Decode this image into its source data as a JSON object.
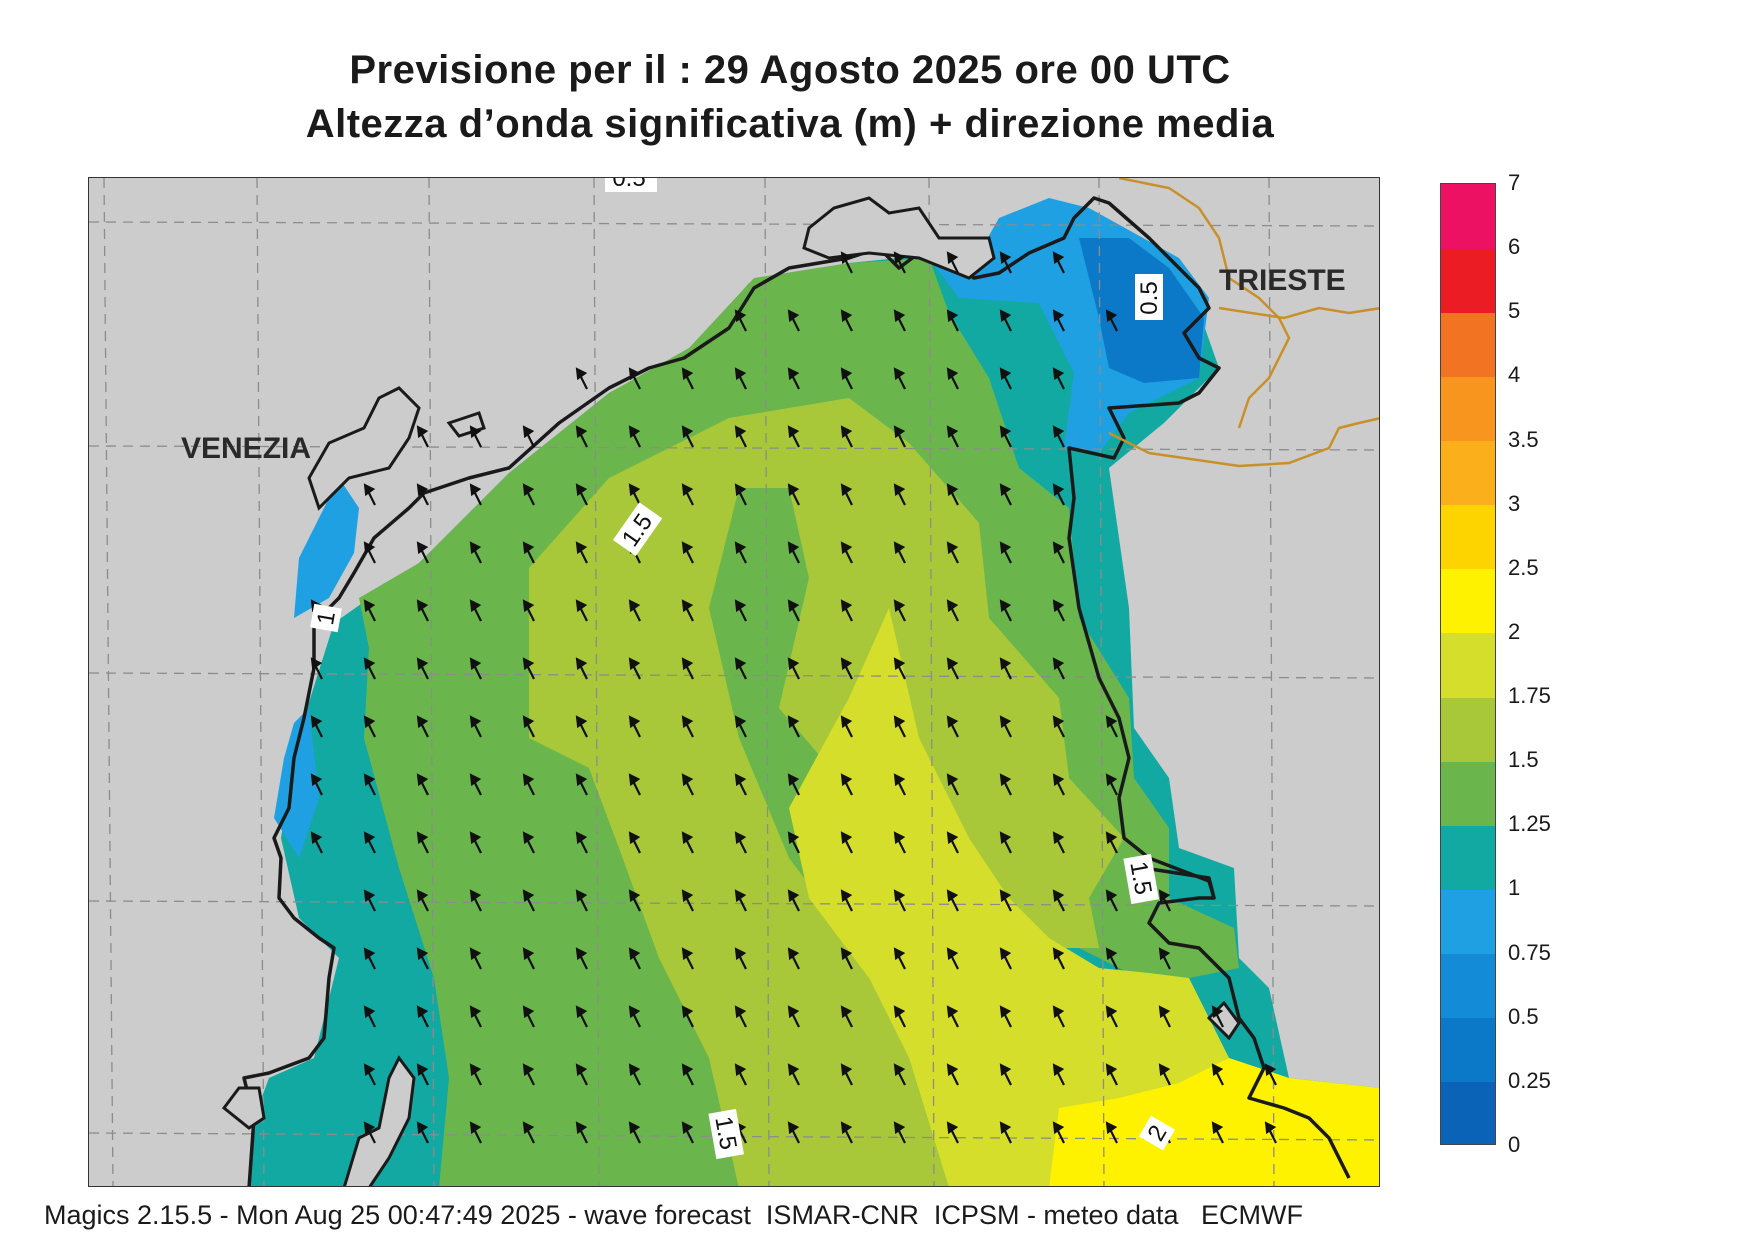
{
  "title": {
    "line1": "Previsione per il  :  29   Agosto  2025   ore 00 UTC",
    "line2": "Altezza d’onda significativa (m) + direzione media"
  },
  "map": {
    "cities": [
      {
        "name": "VENEZIA"
      },
      {
        "name": "TRIESTE"
      }
    ],
    "contour_labels": [
      "0.5",
      "1.5",
      "1",
      "1.5",
      "1.5",
      "2",
      "0.5"
    ],
    "wave_direction": "north-northwest",
    "colors": {
      "land": "#cccccd",
      "coast_line": "#1a1a1a",
      "border_line": "#c8902a",
      "grid_line": "#8c8c8c"
    }
  },
  "legend": {
    "unit": "m",
    "classes": [
      {
        "min": "0",
        "max": "0.25",
        "color": "#0a63b6"
      },
      {
        "min": "0.25",
        "max": "0.5",
        "color": "#0c79c8"
      },
      {
        "min": "0.5",
        "max": "0.75",
        "color": "#138bd6"
      },
      {
        "min": "0.75",
        "max": "1",
        "color": "#1fa0e2"
      },
      {
        "min": "1",
        "max": "1.25",
        "color": "#12a9a3"
      },
      {
        "min": "1.25",
        "max": "1.5",
        "color": "#6bb64c"
      },
      {
        "min": "1.5",
        "max": "1.75",
        "color": "#a8c83a"
      },
      {
        "min": "1.75",
        "max": "2",
        "color": "#d5de2a"
      },
      {
        "min": "2",
        "max": "2.5",
        "color": "#fff200"
      },
      {
        "min": "2.5",
        "max": "3",
        "color": "#fdd300"
      },
      {
        "min": "3",
        "max": "3.5",
        "color": "#fbaf1b"
      },
      {
        "min": "3.5",
        "max": "4",
        "color": "#f8951f"
      },
      {
        "min": "4",
        "max": "5",
        "color": "#f27423"
      },
      {
        "min": "5",
        "max": "6",
        "color": "#ec1c24"
      },
      {
        "min": "6",
        "max": "7",
        "color": "#ec1163"
      }
    ],
    "labels": [
      "0",
      "0.25",
      "0.5",
      "0.75",
      "1",
      "1.25",
      "1.5",
      "1.75",
      "2",
      "2.5",
      "3",
      "3.5",
      "4",
      "5",
      "6",
      "7"
    ]
  },
  "footer": "Magics 2.15.5 - Mon Aug 25 00:47:49 2025 - wave forecast  ISMAR-CNR  ICPSM - meteo data   ECMWF"
}
